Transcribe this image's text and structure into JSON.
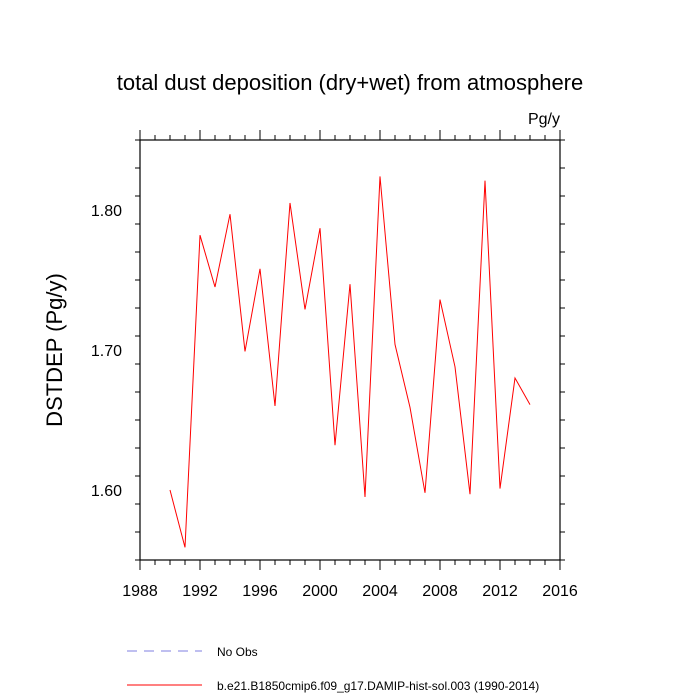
{
  "chart_data": {
    "type": "line",
    "title": "total dust deposition (dry+wet) from atmosphere",
    "units_label": "Pg/y",
    "ylabel": "DSTDEP  (Pg/y)",
    "xlabel": "",
    "xlim": [
      1988,
      2016
    ],
    "ylim": [
      1.55,
      1.85
    ],
    "x_ticks": [
      "1988",
      "1992",
      "1996",
      "2000",
      "2004",
      "2008",
      "2012",
      "2016"
    ],
    "y_ticks": [
      "1.60",
      "1.70",
      "1.80"
    ],
    "grid": false,
    "legend": {
      "placement": "bottom-left",
      "entries": [
        {
          "label": "No Obs",
          "color": "#7f7fe0",
          "style": "dashed"
        },
        {
          "label": "b.e21.B1850cmip6.f09_g17.DAMIP-hist-sol.003 (1990-2014)",
          "color": "#ff0000",
          "style": "solid"
        }
      ]
    },
    "series": [
      {
        "name": "b.e21.B1850cmip6.f09_g17.DAMIP-hist-sol.003 (1990-2014)",
        "color": "#ff0000",
        "x": [
          1990,
          1991,
          1992,
          1993,
          1994,
          1995,
          1996,
          1997,
          1998,
          1999,
          2000,
          2001,
          2002,
          2003,
          2004,
          2005,
          2006,
          2007,
          2008,
          2009,
          2010,
          2011,
          2012,
          2013,
          2014
        ],
        "y": [
          1.6,
          1.559,
          1.782,
          1.745,
          1.797,
          1.699,
          1.758,
          1.66,
          1.805,
          1.729,
          1.787,
          1.632,
          1.747,
          1.595,
          1.824,
          1.704,
          1.659,
          1.598,
          1.736,
          1.688,
          1.597,
          1.821,
          1.601,
          1.68,
          1.661
        ]
      }
    ]
  }
}
